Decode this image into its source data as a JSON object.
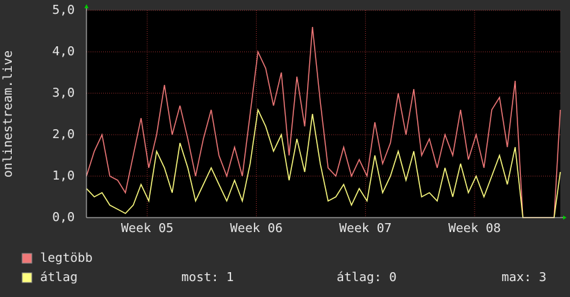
{
  "chart_data": {
    "type": "line",
    "y_label": "onlinestream.live",
    "x": [
      0,
      0.5,
      1,
      1.5,
      2,
      2.5,
      3,
      3.5,
      4,
      4.5,
      5,
      5.5,
      6,
      6.5,
      7,
      7.5,
      8,
      8.5,
      9,
      9.5,
      10,
      10.5,
      11,
      11.5,
      12,
      12.5,
      13,
      13.5,
      14,
      14.5,
      15,
      15.5,
      16,
      16.5,
      17,
      17.5,
      18,
      18.5,
      19,
      19.5,
      20,
      20.5,
      21,
      21.5,
      22,
      22.5,
      23,
      23.5,
      24,
      24.5,
      25,
      25.5,
      26,
      26.5,
      27,
      27.5,
      28,
      28.5,
      29,
      29.5,
      30,
      30.4
    ],
    "xlim": [
      0,
      30.4
    ],
    "xticks": [
      {
        "value": 3.9,
        "label": "Week 05"
      },
      {
        "value": 10.9,
        "label": "Week 06"
      },
      {
        "value": 17.9,
        "label": "Week 07"
      },
      {
        "value": 24.9,
        "label": "Week 08"
      }
    ],
    "ylim": [
      0,
      5
    ],
    "yticks": [
      {
        "value": 0,
        "label": "0,0"
      },
      {
        "value": 1,
        "label": "1,0"
      },
      {
        "value": 2,
        "label": "2,0"
      },
      {
        "value": 3,
        "label": "3,0"
      },
      {
        "value": 4,
        "label": "4,0"
      },
      {
        "value": 5,
        "label": "5,0"
      }
    ],
    "grid": true,
    "series": [
      {
        "name": "legtöbb",
        "color": "#f07878",
        "values": [
          1.0,
          1.6,
          2.0,
          1.0,
          0.9,
          0.6,
          1.5,
          2.4,
          1.2,
          2.0,
          3.2,
          2.0,
          2.7,
          1.9,
          1.0,
          1.9,
          2.6,
          1.5,
          1.0,
          1.7,
          1.0,
          2.5,
          4.0,
          3.6,
          2.7,
          3.5,
          1.5,
          3.4,
          2.2,
          4.6,
          2.8,
          1.2,
          1.0,
          1.7,
          1.0,
          1.4,
          1.0,
          2.3,
          1.3,
          1.8,
          3.0,
          2.0,
          3.1,
          1.5,
          1.9,
          1.2,
          2.0,
          1.5,
          2.6,
          1.4,
          2.0,
          1.2,
          2.6,
          2.9,
          1.7,
          3.3,
          0,
          0,
          0,
          0,
          0,
          2.6
        ]
      },
      {
        "name": "átlag",
        "color": "#ffff80",
        "values": [
          0.7,
          0.5,
          0.6,
          0.3,
          0.2,
          0.1,
          0.3,
          0.8,
          0.4,
          1.6,
          1.2,
          0.6,
          1.8,
          1.2,
          0.4,
          0.8,
          1.2,
          0.8,
          0.4,
          0.9,
          0.4,
          1.3,
          2.6,
          2.2,
          1.6,
          2.0,
          0.9,
          1.9,
          1.1,
          2.5,
          1.3,
          0.4,
          0.5,
          0.8,
          0.3,
          0.7,
          0.4,
          1.5,
          0.6,
          1.0,
          1.6,
          0.9,
          1.6,
          0.5,
          0.6,
          0.4,
          1.2,
          0.5,
          1.3,
          0.6,
          1.0,
          0.5,
          1.0,
          1.5,
          0.8,
          1.7,
          0,
          0,
          0,
          0,
          0,
          1.1
        ]
      }
    ],
    "stats": [
      "most: 1",
      "átlag: 0",
      "max: 3"
    ]
  }
}
